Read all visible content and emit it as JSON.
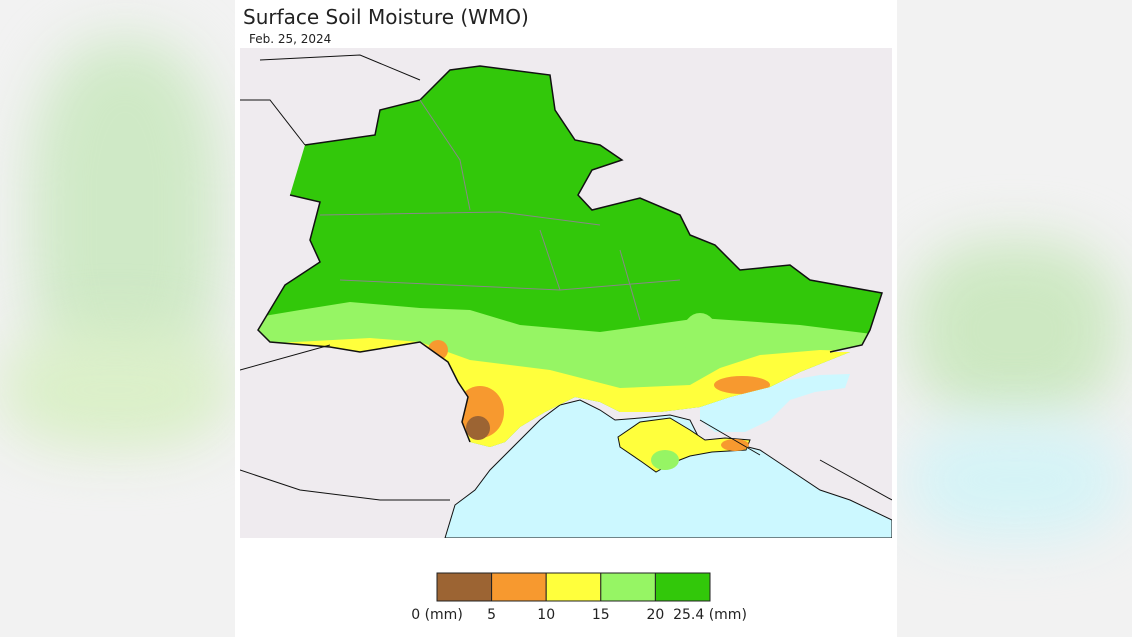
{
  "header": {
    "title": "Surface Soil Moisture (WMO)",
    "date": "Feb. 25, 2024"
  },
  "legend": {
    "colors": [
      "#9c6433",
      "#f7992f",
      "#ffff3c",
      "#96f564",
      "#32c80a"
    ],
    "labels": [
      "0 (mm)",
      "5",
      "10",
      "15",
      "20",
      "25.4 (mm)"
    ]
  }
}
